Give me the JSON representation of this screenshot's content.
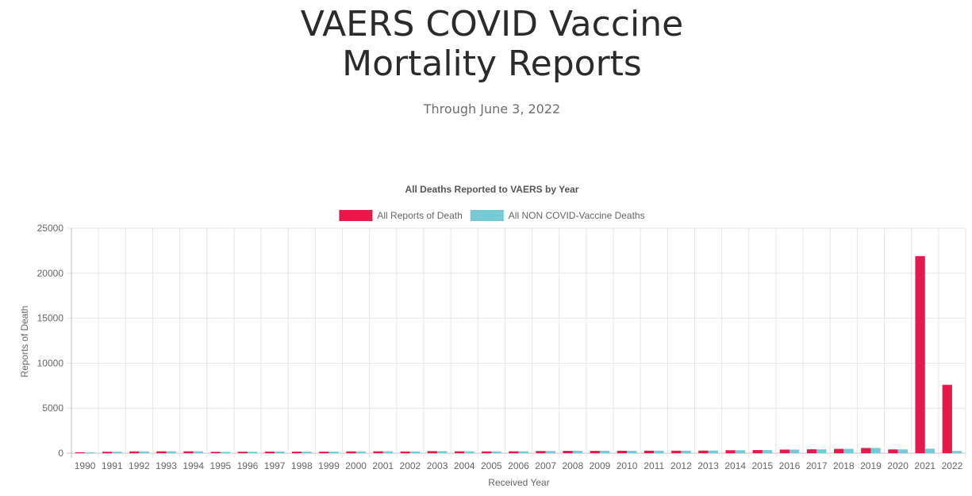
{
  "page": {
    "title_line1": "VAERS COVID Vaccine",
    "title_line2": "Mortality Reports",
    "subtitle": "Through June 3, 2022"
  },
  "chart_data": {
    "type": "bar",
    "title": "All Deaths Reported to VAERS by Year",
    "xlabel": "Received Year",
    "ylabel": "Reports of Death",
    "ylim": [
      0,
      25000
    ],
    "yticks": [
      0,
      5000,
      10000,
      15000,
      20000,
      25000
    ],
    "grid": true,
    "legend_position": "top-center",
    "categories": [
      "1990",
      "1991",
      "1992",
      "1993",
      "1994",
      "1995",
      "1996",
      "1997",
      "1998",
      "1999",
      "2000",
      "2001",
      "2002",
      "2003",
      "2004",
      "2005",
      "2006",
      "2007",
      "2008",
      "2009",
      "2010",
      "2011",
      "2012",
      "2013",
      "2014",
      "2015",
      "2016",
      "2017",
      "2018",
      "2019",
      "2020",
      "2021",
      "2022"
    ],
    "series": [
      {
        "name": "All Reports of Death",
        "color": "#e31a4b",
        "values": [
          100,
          160,
          200,
          210,
          210,
          150,
          160,
          180,
          170,
          170,
          200,
          210,
          190,
          230,
          210,
          200,
          210,
          240,
          260,
          260,
          270,
          280,
          280,
          290,
          330,
          350,
          400,
          430,
          480,
          580,
          420,
          21900,
          7600
        ]
      },
      {
        "name": "All NON COVID-Vaccine Deaths",
        "color": "#76cad6",
        "values": [
          100,
          160,
          200,
          210,
          210,
          150,
          160,
          180,
          170,
          170,
          200,
          210,
          190,
          230,
          210,
          200,
          210,
          240,
          260,
          260,
          270,
          280,
          280,
          290,
          330,
          350,
          400,
          430,
          480,
          580,
          420,
          500,
          250
        ]
      }
    ]
  }
}
